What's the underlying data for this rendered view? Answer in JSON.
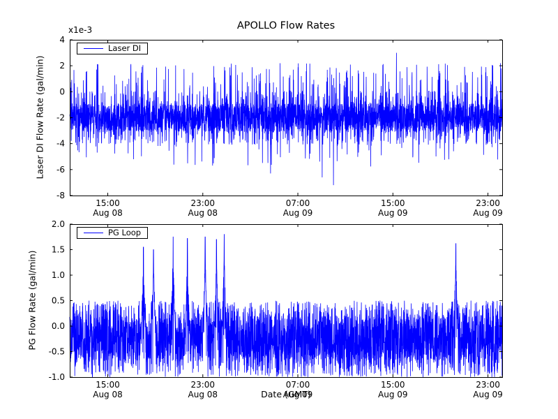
{
  "figure": {
    "background": "#ffffff",
    "line_color": "#0000ff"
  },
  "chart_data": [
    {
      "type": "line",
      "title": "APOLLO Flow Rates",
      "ylabel": "Laser DI Flow Rate (gal/min)",
      "offset_text": "x1e-3",
      "legend_label": "Laser DI",
      "legend_loc": "upper left",
      "line_color": "#0000ff",
      "grid": false,
      "unit_scale": 0.001,
      "xlim_hours_from_aug08": [
        11.8,
        48.2
      ],
      "ylim": [
        -8,
        4
      ],
      "yticks": [
        4,
        2,
        0,
        -2,
        -4,
        -6,
        -8
      ],
      "ytick_labels": [
        "4",
        "2",
        "0",
        "-2",
        "-4",
        "-6",
        "-8"
      ],
      "xticks": [
        {
          "hour": 15,
          "time": "15:00",
          "date": "Aug 08"
        },
        {
          "hour": 23,
          "time": "23:00",
          "date": "Aug 08"
        },
        {
          "hour": 31,
          "time": "07:00",
          "date": "Aug 09"
        },
        {
          "hour": 39,
          "time": "15:00",
          "date": "Aug 09"
        },
        {
          "hour": 47,
          "time": "23:00",
          "date": "Aug 09"
        }
      ],
      "signal": {
        "description": "dense noise in x1e-3 units centered near -2, band -4..0, frequent up-spikes to ~2, down-spikes to ~-6, one max spike 3, one min spike -7.2",
        "seed": 42,
        "n_points": 3600,
        "baseline": -2.0,
        "core_halfwidth": 1.1,
        "dense_band": [
          -4.1,
          0.1
        ],
        "upper_spike_level": 2.2,
        "lower_spike_level": -5.8,
        "extremes": [
          {
            "hour": 39.3,
            "value": 3.0
          },
          {
            "hour": 34.0,
            "value": -7.2
          },
          {
            "hour": 33.05,
            "value": -6.6
          },
          {
            "hour": 28.7,
            "value": -6.3
          }
        ]
      }
    },
    {
      "type": "line",
      "title": "",
      "ylabel": "PG Flow Rate (gal/min)",
      "xlabel": "Date (GMT)",
      "legend_label": "PG Loop",
      "legend_loc": "upper left",
      "line_color": "#0000ff",
      "grid": false,
      "xlim_hours_from_aug08": [
        11.8,
        48.2
      ],
      "ylim": [
        -1.0,
        2.0
      ],
      "yticks": [
        2.0,
        1.5,
        1.0,
        0.5,
        0.0,
        -0.5,
        -1.0
      ],
      "ytick_labels": [
        "2.0",
        "1.5",
        "1.0",
        "0.5",
        "0.0",
        "-0.5",
        "-1.0"
      ],
      "xticks": [
        {
          "hour": 15,
          "time": "15:00",
          "date": "Aug 08"
        },
        {
          "hour": 23,
          "time": "23:00",
          "date": "Aug 08"
        },
        {
          "hour": 31,
          "time": "07:00",
          "date": "Aug 09"
        },
        {
          "hour": 39,
          "time": "15:00",
          "date": "Aug 09"
        },
        {
          "hour": 47,
          "time": "23:00",
          "date": "Aug 09"
        }
      ],
      "signal": {
        "description": "dense noise band -1.0..0.5 centered near -0.25 with narrow tall spikes",
        "seed": 7,
        "n_points": 3600,
        "baseline": -0.25,
        "band": [
          -1.0,
          0.5
        ],
        "spikes": [
          {
            "hour": 18.0,
            "peak": 1.55
          },
          {
            "hour": 18.85,
            "peak": 1.5
          },
          {
            "hour": 20.5,
            "peak": 1.75
          },
          {
            "hour": 21.7,
            "peak": 1.72
          },
          {
            "hour": 23.2,
            "peak": 1.75
          },
          {
            "hour": 24.15,
            "peak": 1.7
          },
          {
            "hour": 24.8,
            "peak": 1.8
          },
          {
            "hour": 44.3,
            "peak": 1.62
          }
        ]
      }
    }
  ]
}
